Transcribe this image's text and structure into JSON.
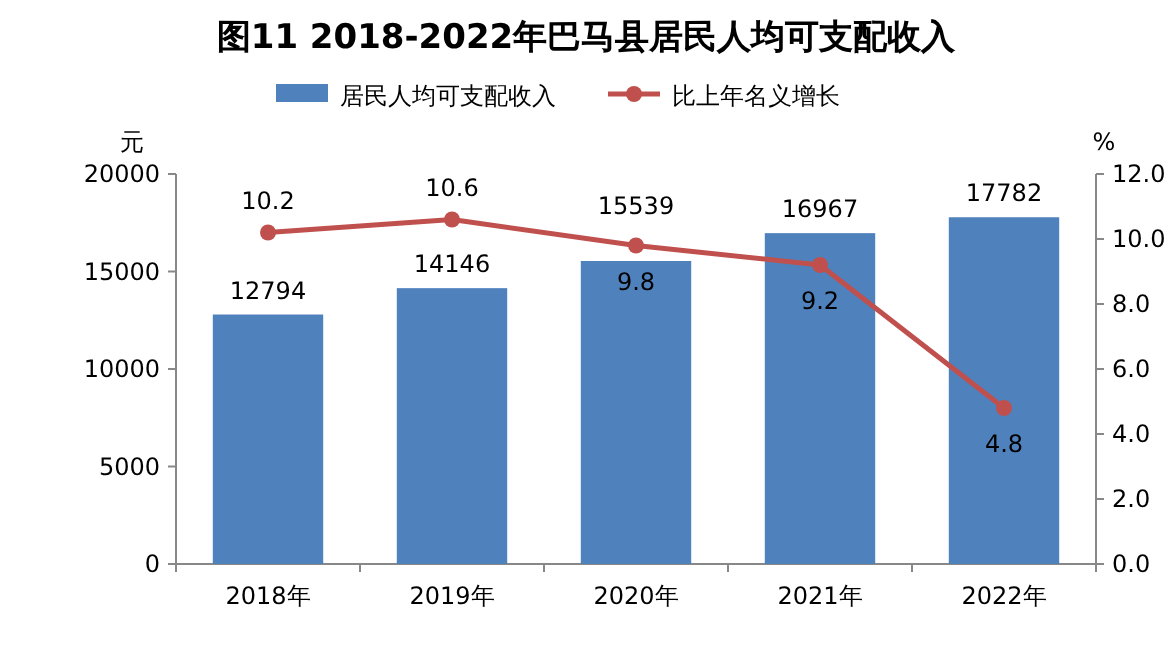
{
  "chart_data": {
    "type": "bar",
    "title": "图11  2018-2022年巴马县居民人均可支配收入",
    "ylabel": "元",
    "y2label": "%",
    "categories": [
      "2018年",
      "2019年",
      "2020年",
      "2021年",
      "2022年"
    ],
    "series": [
      {
        "name": "居民人均可支配收入",
        "color": "#4f81bd",
        "values": [
          12794,
          14146,
          15539,
          16967,
          17782
        ]
      },
      {
        "name": "比上年名义增长",
        "type": "line",
        "axis": "y2",
        "color": "#c0504d",
        "marker": "circle",
        "values": [
          10.2,
          10.6,
          9.8,
          9.2,
          4.8
        ]
      }
    ],
    "ylim": [
      0,
      20000
    ],
    "yticks": [
      0,
      5000,
      10000,
      15000,
      20000
    ],
    "y2lim": [
      0,
      12
    ],
    "y2ticks": [
      {
        "value": 0,
        "label": "0.0"
      },
      {
        "value": 2,
        "label": "2.0"
      },
      {
        "value": 4,
        "label": "4.0"
      },
      {
        "value": 6,
        "label": "6.0"
      },
      {
        "value": 8,
        "label": "8.0"
      },
      {
        "value": 10,
        "label": "10.0"
      },
      {
        "value": 12,
        "label": "12.0"
      }
    ],
    "data_labels": true,
    "legend": "top",
    "grid": false
  }
}
